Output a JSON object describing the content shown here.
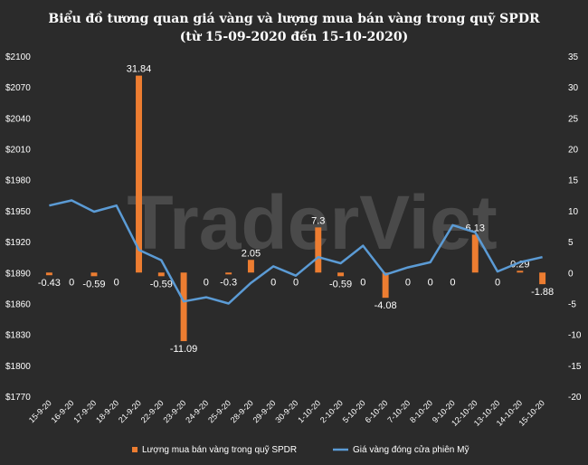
{
  "chart_data": {
    "type": "bar+line",
    "title": "Biểu đồ tương quan giá vàng và lượng mua bán vàng trong quỹ SPDR",
    "subtitle": "(từ 15-09-2020 đến 15-10-2020)",
    "watermark": "TraderViet",
    "categories": [
      "15-9-20",
      "16-9-20",
      "17-9-20",
      "18-9-20",
      "21-9-20",
      "22-9-20",
      "23-9-20",
      "24-9-20",
      "25-9-20",
      "28-9-20",
      "29-9-20",
      "30-9-20",
      "1-10-20",
      "2-10-20",
      "5-10-20",
      "6-10-20",
      "7-10-20",
      "8-10-20",
      "9-10-20",
      "12-10-20",
      "13-10-20",
      "14-10-20",
      "15-10-20"
    ],
    "y_left": {
      "min": 1770,
      "max": 2100,
      "step": 30,
      "prefix": "$",
      "ticks": [
        "$1770",
        "$1800",
        "$1830",
        "$1860",
        "$1890",
        "$1920",
        "$1950",
        "$1980",
        "$2010",
        "$2040",
        "$2070",
        "$2100"
      ]
    },
    "y_right": {
      "min": -20,
      "max": 35,
      "step": 5,
      "ticks": [
        "-20",
        "-15",
        "-10",
        "-5",
        "0",
        "5",
        "10",
        "15",
        "20",
        "25",
        "30",
        "35"
      ]
    },
    "series": [
      {
        "name": "Lượng mua bán vàng trong quỹ SPDR",
        "type": "bar",
        "axis": "right",
        "color": "#ed7d31",
        "values": [
          -0.43,
          0,
          -0.59,
          0,
          31.84,
          -0.59,
          -11.09,
          0,
          -0.3,
          2.05,
          0,
          0,
          7.3,
          -0.59,
          0,
          -4.08,
          0,
          0,
          0,
          6.13,
          0,
          0.29,
          -1.88
        ],
        "labels": [
          "-0.43",
          "0",
          "-0.59",
          "0",
          "31.84",
          "-0.59",
          "-11.09",
          "0",
          "-0.3",
          "2.05",
          "0",
          "0",
          "7.3",
          "-0.59",
          "0",
          "-4.08",
          "0",
          "0",
          "0",
          "6.13",
          "0",
          "0.29",
          "-1.88"
        ]
      },
      {
        "name": "Giá vàng đóng cửa phiên Mỹ",
        "type": "line",
        "axis": "left",
        "color": "#5b9bd5",
        "values": [
          1955,
          1960,
          1949,
          1955,
          1912,
          1902,
          1862,
          1866,
          1860,
          1880,
          1896,
          1887,
          1905,
          1899,
          1916,
          1888,
          1895,
          1900,
          1936,
          1929,
          1891,
          1900,
          1905
        ]
      }
    ],
    "legend_position": "bottom"
  }
}
